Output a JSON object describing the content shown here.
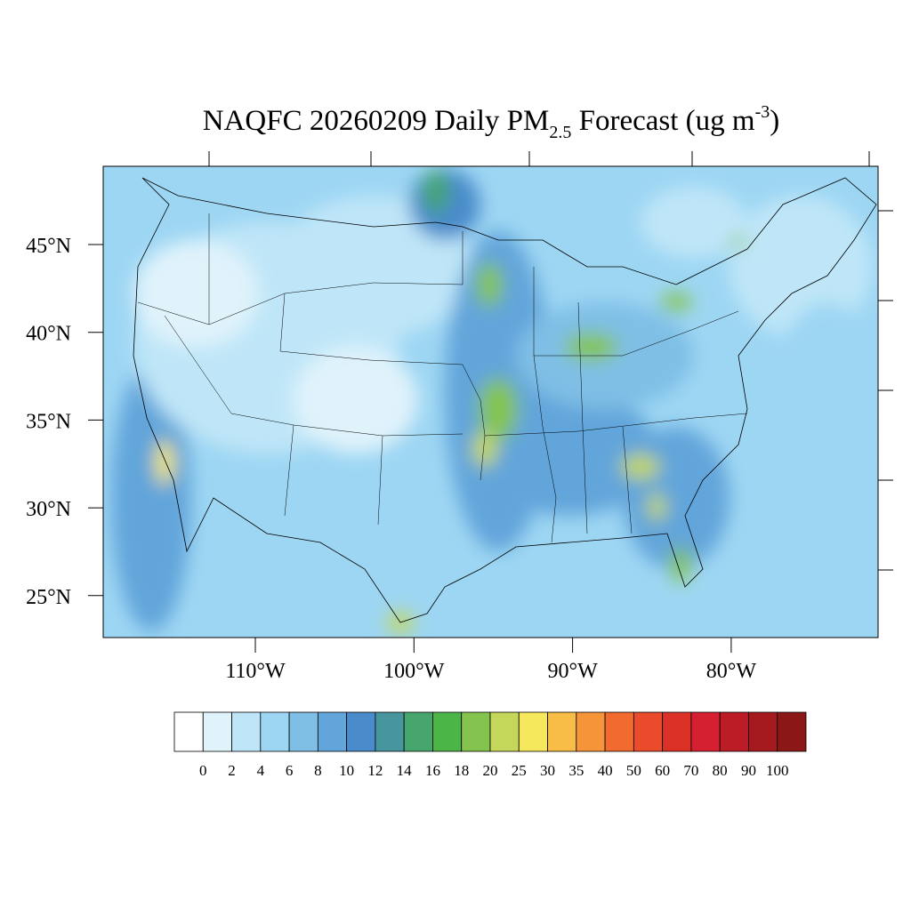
{
  "title": {
    "main": "NAQFC 20260209 Daily PM",
    "sub": "2.5",
    "rest": " Forecast (ug m",
    "sup": "-3",
    "end": ")"
  },
  "map": {
    "lat_ticks": [
      {
        "value": 45,
        "label": "45°N"
      },
      {
        "value": 40,
        "label": "40°N"
      },
      {
        "value": 35,
        "label": "35°N"
      },
      {
        "value": 30,
        "label": "30°N"
      },
      {
        "value": 25,
        "label": "25°N"
      }
    ],
    "lon_ticks": [
      {
        "value": -110,
        "label": "110°W"
      },
      {
        "value": -100,
        "label": "100°W"
      },
      {
        "value": -90,
        "label": "90°W"
      },
      {
        "value": -80,
        "label": "80°W"
      }
    ]
  },
  "colorbar": {
    "levels": [
      0,
      2,
      4,
      6,
      8,
      10,
      12,
      14,
      16,
      18,
      20,
      25,
      30,
      35,
      40,
      50,
      60,
      70,
      80,
      90,
      100
    ],
    "colors": [
      "#ffffff",
      "#e0f3fb",
      "#bfe6f8",
      "#9dd6f3",
      "#7fbfe6",
      "#62a5da",
      "#4a8bcb",
      "#47969e",
      "#46a66e",
      "#4cb548",
      "#84c44e",
      "#c4d75a",
      "#f6e85c",
      "#f8bd47",
      "#f6943a",
      "#f26b2e",
      "#ea4b2b",
      "#db3127",
      "#d42030",
      "#bb1c25",
      "#a51a1f",
      "#8c1717"
    ]
  }
}
